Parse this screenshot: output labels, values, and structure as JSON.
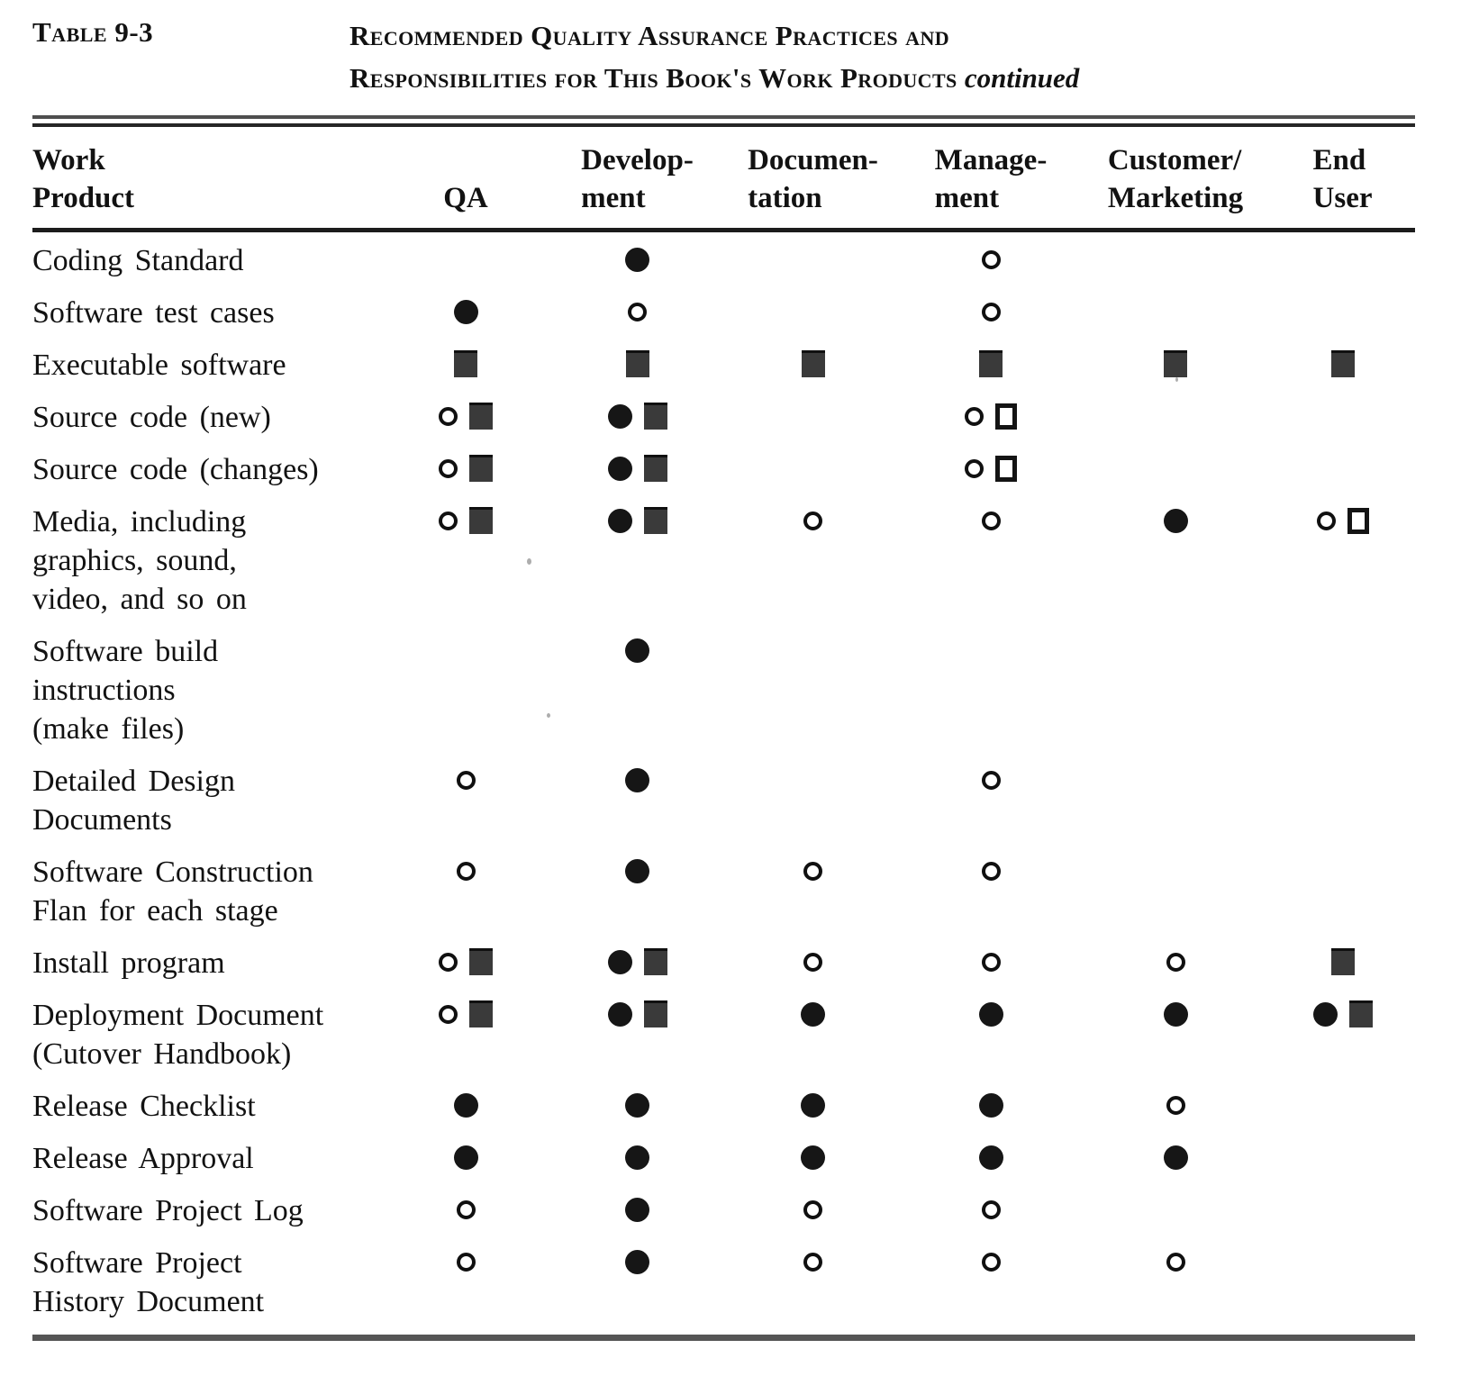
{
  "style": {
    "ink": "#121212",
    "paper": "#ffffff",
    "rule_gray": "#555555"
  },
  "header": {
    "table_label": "Table 9-3",
    "title_line1": "Recommended Quality Assurance Practices and",
    "title_line2": "Responsibilities for This Book's Work Products",
    "title_continued": "continued"
  },
  "symbols": {
    "filled_circle": "●",
    "open_circle": "○",
    "filled_square": "■",
    "open_square": "□"
  },
  "columns": [
    {
      "key": "product",
      "label": "Work\nProduct"
    },
    {
      "key": "qa",
      "label": "QA"
    },
    {
      "key": "development",
      "label": "Develop-\nment"
    },
    {
      "key": "documentation",
      "label": "Documen-\ntation"
    },
    {
      "key": "management",
      "label": "Manage-\nment"
    },
    {
      "key": "customer_marketing",
      "label": "Customer/\nMarketing"
    },
    {
      "key": "end_user",
      "label": "End\nUser"
    }
  ],
  "rows": [
    {
      "product": "Coding Standard",
      "qa": [],
      "development": [
        "filled_circle"
      ],
      "documentation": [],
      "management": [
        "open_circle"
      ],
      "customer_marketing": [],
      "end_user": []
    },
    {
      "product": "Software test cases",
      "qa": [
        "filled_circle"
      ],
      "development": [
        "open_circle"
      ],
      "documentation": [],
      "management": [
        "open_circle"
      ],
      "customer_marketing": [],
      "end_user": []
    },
    {
      "product": "Executable software",
      "qa": [
        "filled_square"
      ],
      "development": [
        "filled_square"
      ],
      "documentation": [
        "filled_square"
      ],
      "management": [
        "filled_square"
      ],
      "customer_marketing": [
        "filled_square"
      ],
      "end_user": [
        "filled_square"
      ]
    },
    {
      "product": "Source code (new)",
      "qa": [
        "open_circle",
        "filled_square"
      ],
      "development": [
        "filled_circle",
        "filled_square"
      ],
      "documentation": [],
      "management": [
        "open_circle",
        "open_square"
      ],
      "customer_marketing": [],
      "end_user": []
    },
    {
      "product": "Source code (changes)",
      "qa": [
        "open_circle",
        "filled_square"
      ],
      "development": [
        "filled_circle",
        "filled_square"
      ],
      "documentation": [],
      "management": [
        "open_circle",
        "open_square"
      ],
      "customer_marketing": [],
      "end_user": []
    },
    {
      "product": "Media, including\ngraphics, sound,\nvideo, and so on",
      "qa": [
        "open_circle",
        "filled_square"
      ],
      "development": [
        "filled_circle",
        "filled_square"
      ],
      "documentation": [
        "open_circle"
      ],
      "management": [
        "open_circle"
      ],
      "customer_marketing": [
        "filled_circle"
      ],
      "end_user": [
        "open_circle",
        "open_square"
      ]
    },
    {
      "product": "Software build\ninstructions\n(make files)",
      "qa": [],
      "development": [
        "filled_circle"
      ],
      "documentation": [],
      "management": [],
      "customer_marketing": [],
      "end_user": []
    },
    {
      "product": "Detailed Design\nDocuments",
      "qa": [
        "open_circle"
      ],
      "development": [
        "filled_circle"
      ],
      "documentation": [],
      "management": [
        "open_circle"
      ],
      "customer_marketing": [],
      "end_user": []
    },
    {
      "product": "Software Construction\nFlan for each stage",
      "qa": [
        "open_circle"
      ],
      "development": [
        "filled_circle"
      ],
      "documentation": [
        "open_circle"
      ],
      "management": [
        "open_circle"
      ],
      "customer_marketing": [],
      "end_user": []
    },
    {
      "product": "Install program",
      "qa": [
        "open_circle",
        "filled_square"
      ],
      "development": [
        "filled_circle",
        "filled_square"
      ],
      "documentation": [
        "open_circle"
      ],
      "management": [
        "open_circle"
      ],
      "customer_marketing": [
        "open_circle"
      ],
      "end_user": [
        "filled_square"
      ]
    },
    {
      "product": "Deployment Document\n(Cutover Handbook)",
      "qa": [
        "open_circle",
        "filled_square"
      ],
      "development": [
        "filled_circle",
        "filled_square"
      ],
      "documentation": [
        "filled_circle"
      ],
      "management": [
        "filled_circle"
      ],
      "customer_marketing": [
        "filled_circle"
      ],
      "end_user": [
        "filled_circle",
        "filled_square"
      ]
    },
    {
      "product": "Release Checklist",
      "qa": [
        "filled_circle"
      ],
      "development": [
        "filled_circle"
      ],
      "documentation": [
        "filled_circle"
      ],
      "management": [
        "filled_circle"
      ],
      "customer_marketing": [
        "open_circle"
      ],
      "end_user": []
    },
    {
      "product": "Release Approval",
      "qa": [
        "filled_circle"
      ],
      "development": [
        "filled_circle"
      ],
      "documentation": [
        "filled_circle"
      ],
      "management": [
        "filled_circle"
      ],
      "customer_marketing": [
        "filled_circle"
      ],
      "end_user": []
    },
    {
      "product": "Software Project Log",
      "qa": [
        "open_circle"
      ],
      "development": [
        "filled_circle"
      ],
      "documentation": [
        "open_circle"
      ],
      "management": [
        "open_circle"
      ],
      "customer_marketing": [],
      "end_user": []
    },
    {
      "product": "Software Project\nHistory Document",
      "qa": [
        "open_circle"
      ],
      "development": [
        "filled_circle"
      ],
      "documentation": [
        "open_circle"
      ],
      "management": [
        "open_circle"
      ],
      "customer_marketing": [
        "open_circle"
      ],
      "end_user": []
    }
  ]
}
